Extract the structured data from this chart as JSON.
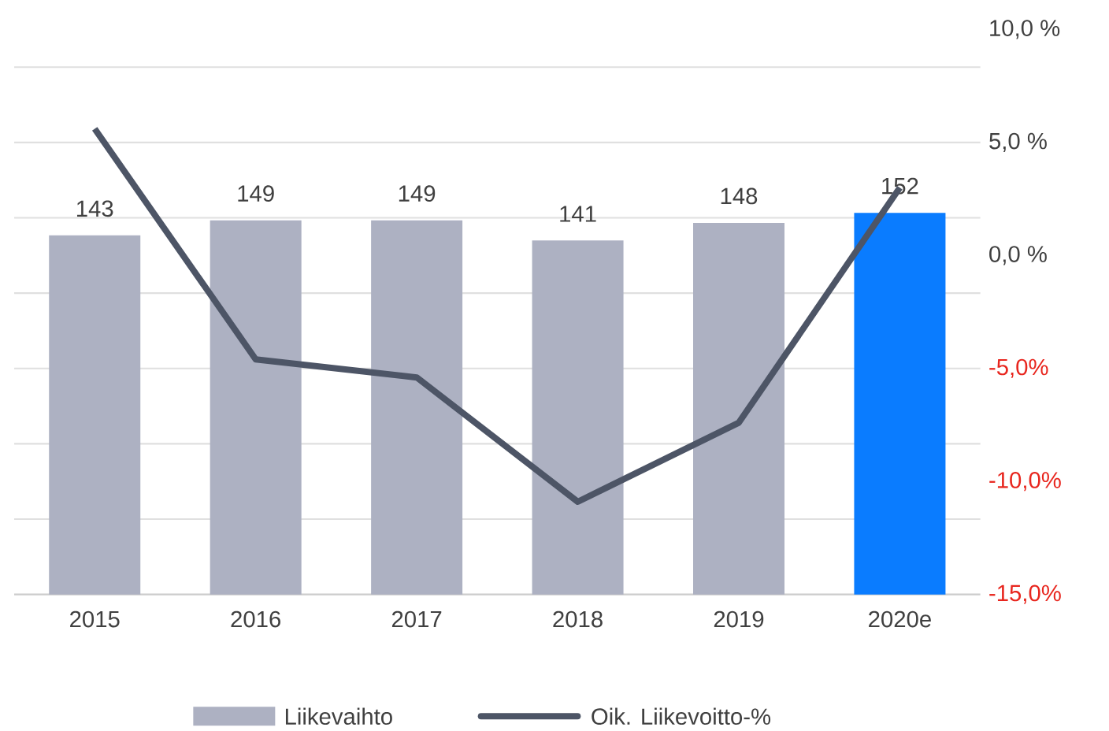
{
  "chart_data": {
    "type": "bar",
    "categories": [
      "2015",
      "2016",
      "2017",
      "2018",
      "2019",
      "2020e"
    ],
    "series": [
      {
        "name": "Liikevaihto",
        "colors": [
          "#adb1c2",
          "#adb1c2",
          "#adb1c2",
          "#adb1c2",
          "#adb1c2",
          "#0a7cff"
        ],
        "values": [
          143,
          149,
          149,
          141,
          148,
          152
        ],
        "value_labels": [
          "143",
          "149",
          "149",
          "141",
          "148",
          "152"
        ]
      },
      {
        "name": "Oik. Liikevoitto-%",
        "type": "line",
        "axis": "y2",
        "color": "#4d5566",
        "values": [
          5.6,
          -4.6,
          -5.4,
          -10.9,
          -7.4,
          3.0
        ]
      }
    ],
    "yticks": [
      {
        "value": 30,
        "label": null
      },
      {
        "value": 60,
        "label": null
      },
      {
        "value": 90,
        "label": null
      },
      {
        "value": 120,
        "label": null
      },
      {
        "value": 150,
        "label": null
      },
      {
        "value": 180,
        "label": null
      },
      {
        "value": 210,
        "label": null
      }
    ],
    "y2lim": [
      -15,
      10
    ],
    "y2ticks": [
      {
        "value": -15,
        "label": "-15,0%"
      },
      {
        "value": -10,
        "label": "-10,0%"
      },
      {
        "value": -5,
        "label": "-5,0%"
      },
      {
        "value": 0,
        "label": "0,0 %"
      },
      {
        "value": 5,
        "label": "5,0 %"
      },
      {
        "value": 10,
        "label": "10,0 %"
      }
    ],
    "grid": "y",
    "legend": "bottom"
  }
}
